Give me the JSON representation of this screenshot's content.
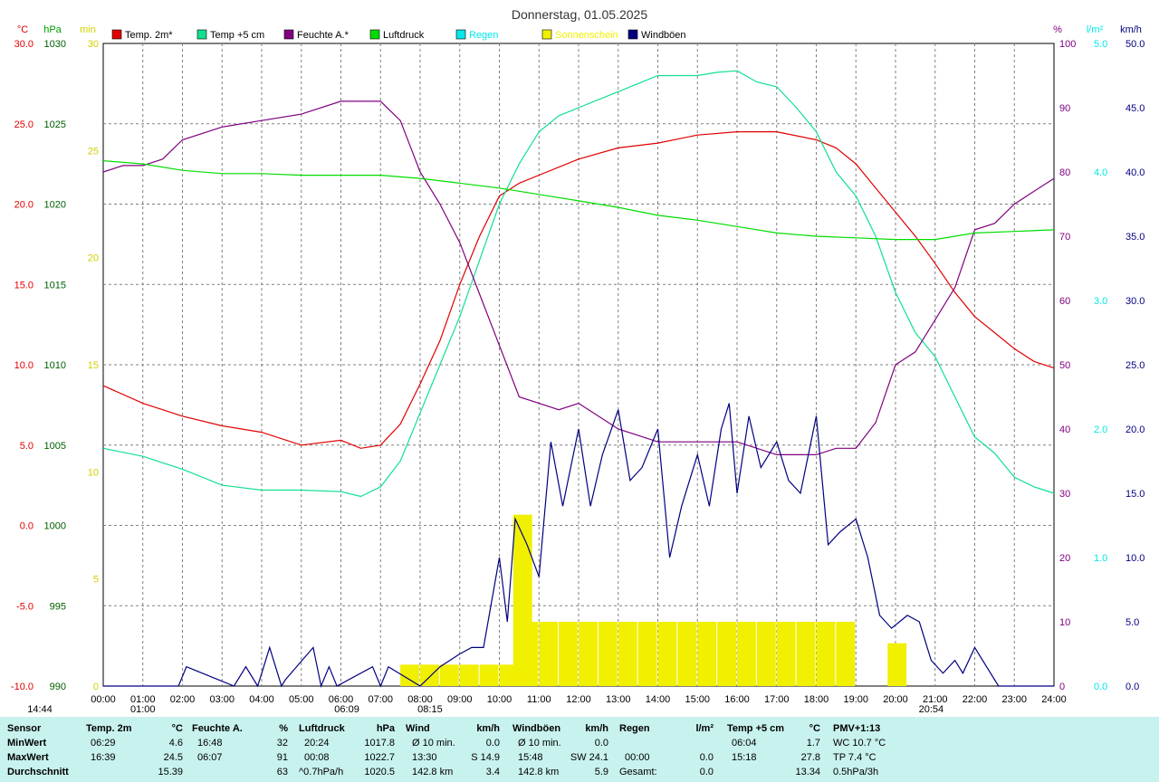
{
  "colors": {
    "temp2m": "#e00000",
    "temp5cm": "#10e090",
    "humidity": "#800080",
    "pressure": "#00dd00",
    "rain": "#00e8e8",
    "sunshine": "#f0f000",
    "gusts": "#000080",
    "grid": "#808080"
  },
  "chart_data": {
    "type": "line",
    "title": "Donnerstag, 01.05.2025",
    "legend": [
      {
        "name": "Temp. 2m*",
        "color": "#e00000"
      },
      {
        "name": "Temp +5 cm",
        "color": "#10e090"
      },
      {
        "name": "Feuchte A.*",
        "color": "#800080"
      },
      {
        "name": "Luftdruck",
        "color": "#00dd00"
      },
      {
        "name": "Regen",
        "color": "#00e8e8"
      },
      {
        "name": "Sonnenschein",
        "color": "#f0f000"
      },
      {
        "name": "Windböen",
        "color": "#000080"
      }
    ],
    "axes": {
      "left_units": [
        "°C",
        "hPa",
        "min"
      ],
      "right_units": [
        "%",
        "l/m²",
        "km/h"
      ],
      "temp": {
        "range": [
          -10,
          30
        ],
        "ticks": [
          "30.0",
          "25.0",
          "20.0",
          "15.0",
          "10.0",
          "5.0",
          "0.0",
          "-5.0",
          "-10.0"
        ]
      },
      "pressure": {
        "range": [
          990,
          1030
        ],
        "ticks": [
          "1030",
          "1025",
          "1020",
          "1015",
          "1010",
          "1005",
          "1000",
          "995",
          "990"
        ]
      },
      "sun_min": {
        "range": [
          0,
          30
        ],
        "ticks": [
          "30",
          "25",
          "20",
          "15",
          "10",
          "5",
          "0"
        ]
      },
      "humidity": {
        "range": [
          0,
          100
        ],
        "ticks": [
          "100",
          "90",
          "80",
          "70",
          "60",
          "50",
          "40",
          "30",
          "20",
          "10",
          "0"
        ]
      },
      "rain": {
        "range": [
          0,
          5
        ],
        "ticks": [
          "5.0",
          "4.0",
          "3.0",
          "2.0",
          "1.0",
          "0.0"
        ]
      },
      "wind": {
        "range": [
          0,
          50
        ],
        "ticks": [
          "50.0",
          "45.0",
          "40.0",
          "35.0",
          "30.0",
          "25.0",
          "20.0",
          "15.0",
          "10.0",
          "5.0",
          "0.0"
        ]
      },
      "x_ticks": [
        "00:00",
        "01:00",
        "02:00",
        "03:00",
        "04:00",
        "05:00",
        "06:00",
        "07:00",
        "08:00",
        "09:00",
        "10:00",
        "11:00",
        "12:00",
        "13:00",
        "14:00",
        "15:00",
        "16:00",
        "17:00",
        "18:00",
        "19:00",
        "20:00",
        "21:00",
        "22:00",
        "23:00",
        "24:00"
      ]
    },
    "markers": [
      {
        "label": "14:44",
        "hour": -1.6
      },
      {
        "label": "01:00",
        "hour": 1.0
      },
      {
        "label": "06:09",
        "hour": 6.15
      },
      {
        "label": "08:15",
        "hour": 8.25
      },
      {
        "label": "20:54",
        "hour": 20.9
      }
    ],
    "series": [
      {
        "name": "Temp. 2m*",
        "axis": "temp",
        "x": [
          0,
          1,
          2,
          3,
          4,
          5,
          6,
          6.5,
          7,
          7.5,
          8,
          8.5,
          9,
          9.5,
          10,
          10.5,
          11,
          11.5,
          12,
          13,
          14,
          15,
          16,
          17,
          18,
          18.5,
          19,
          19.5,
          20,
          20.5,
          21,
          21.5,
          22,
          22.5,
          23,
          23.5,
          24
        ],
        "y": [
          8.7,
          7.6,
          6.8,
          6.2,
          5.8,
          5.0,
          5.3,
          4.8,
          5.0,
          6.3,
          8.8,
          11.5,
          15.0,
          18.0,
          20.5,
          21.3,
          21.8,
          22.3,
          22.8,
          23.5,
          23.8,
          24.3,
          24.5,
          24.5,
          24.0,
          23.5,
          22.5,
          21.0,
          19.5,
          18.0,
          16.3,
          14.5,
          13.0,
          12.0,
          11.0,
          10.2,
          9.8
        ]
      },
      {
        "name": "Temp +5 cm",
        "axis": "temp",
        "x": [
          0,
          1,
          2,
          3,
          4,
          5,
          6,
          6.5,
          7,
          7.5,
          8,
          8.5,
          9,
          9.5,
          10,
          10.5,
          11,
          11.5,
          12,
          12.5,
          13,
          13.5,
          14,
          14.5,
          15,
          15.5,
          16,
          16.5,
          17,
          17.5,
          18,
          18.5,
          19,
          19.5,
          20,
          20.5,
          21,
          21.5,
          22,
          22.5,
          23,
          23.5,
          24
        ],
        "y": [
          4.8,
          4.3,
          3.5,
          2.5,
          2.2,
          2.2,
          2.1,
          1.8,
          2.4,
          4.0,
          7.0,
          10.0,
          13.0,
          16.5,
          20.0,
          22.5,
          24.5,
          25.5,
          26.0,
          26.5,
          27.0,
          27.5,
          28.0,
          28.0,
          28.0,
          28.2,
          28.3,
          27.6,
          27.3,
          26.0,
          24.5,
          22.0,
          20.5,
          18.0,
          14.5,
          12.0,
          10.5,
          8.0,
          5.5,
          4.5,
          3.0,
          2.4,
          2.0
        ]
      },
      {
        "name": "Feuchte A.*",
        "axis": "humidity",
        "x": [
          0,
          0.5,
          1,
          1.5,
          2,
          3,
          4,
          5,
          6,
          7,
          7.5,
          8,
          8.5,
          9,
          9.5,
          10,
          10.5,
          11,
          11.5,
          12,
          12.5,
          13,
          14,
          15,
          16,
          17,
          18,
          18.5,
          19,
          19.5,
          20,
          20.5,
          21,
          21.5,
          22,
          22.5,
          23,
          23.5,
          24
        ],
        "y": [
          80,
          81,
          81,
          82,
          85,
          87,
          88,
          89,
          91,
          91,
          88,
          80,
          75,
          69,
          61,
          53,
          45,
          44,
          43,
          44,
          42,
          40,
          38,
          38,
          38,
          36,
          36,
          37,
          37,
          41,
          50,
          52,
          57,
          62,
          71,
          72,
          75,
          77,
          79
        ]
      },
      {
        "name": "Luftdruck",
        "axis": "pressure",
        "x": [
          0,
          1,
          2,
          3,
          4,
          5,
          6,
          7,
          8,
          9,
          10,
          11,
          12,
          13,
          14,
          15,
          16,
          17,
          18,
          19,
          20,
          21,
          22,
          23,
          24
        ],
        "y": [
          1022.7,
          1022.5,
          1022.1,
          1021.9,
          1021.9,
          1021.8,
          1021.8,
          1021.8,
          1021.6,
          1021.3,
          1021.0,
          1020.6,
          1020.2,
          1019.8,
          1019.3,
          1019.0,
          1018.6,
          1018.2,
          1018.0,
          1017.9,
          1017.8,
          1017.8,
          1018.2,
          1018.3,
          1018.4
        ]
      },
      {
        "name": "Windböen",
        "axis": "wind",
        "x": [
          0,
          1.9,
          2.1,
          3.3,
          3.6,
          3.9,
          4.2,
          4.5,
          4.6,
          5.3,
          5.5,
          5.7,
          5.9,
          6.8,
          7.0,
          7.2,
          8.0,
          8.5,
          9.0,
          9.3,
          9.6,
          10.0,
          10.2,
          10.4,
          10.7,
          11.0,
          11.3,
          11.6,
          12.0,
          12.3,
          12.6,
          13.0,
          13.3,
          13.6,
          14.0,
          14.3,
          14.6,
          15.0,
          15.3,
          15.6,
          15.8,
          16.0,
          16.3,
          16.6,
          17.0,
          17.3,
          17.6,
          18.0,
          18.3,
          18.6,
          19.0,
          19.3,
          19.6,
          19.9,
          20.1,
          20.3,
          20.6,
          20.9,
          21.2,
          21.5,
          21.7,
          22.0,
          22.3,
          22.6,
          24.0
        ],
        "y": [
          0,
          0,
          1.5,
          0,
          1.5,
          0,
          3.0,
          0,
          0.5,
          3.0,
          0,
          1.5,
          0,
          1.5,
          0,
          1.5,
          0,
          1.5,
          2.5,
          3.0,
          3.0,
          10.0,
          5.0,
          13.0,
          11.0,
          8.5,
          19.0,
          14.0,
          20.0,
          14.0,
          18.0,
          21.5,
          16.0,
          17.0,
          20.0,
          10.0,
          14.0,
          18.0,
          14.0,
          20.0,
          22.0,
          15.0,
          21.0,
          17.0,
          19.0,
          16.0,
          15.0,
          21.0,
          11.0,
          12.0,
          13.0,
          10.0,
          5.5,
          4.5,
          5.0,
          5.5,
          5.0,
          2.0,
          1.0,
          2.0,
          1.0,
          3.0,
          1.5,
          0,
          0
        ]
      },
      {
        "name": "Sonnenschein",
        "axis": "sun_min",
        "type": "bar",
        "x": [
          7.5,
          8,
          8.5,
          9,
          9.5,
          10,
          10.35,
          10.5,
          11,
          11.5,
          12,
          12.5,
          13,
          13.5,
          14,
          14.5,
          15,
          15.5,
          16,
          16.5,
          17,
          17.5,
          18,
          18.5,
          19,
          19.8
        ],
        "y": [
          1,
          1,
          1,
          1,
          1,
          1,
          8,
          3,
          3,
          3,
          3,
          3,
          3,
          3,
          3,
          3,
          3,
          3,
          3,
          3,
          3,
          3,
          3,
          3,
          0,
          2
        ]
      }
    ]
  },
  "stats": {
    "headers": {
      "sensor": "Sensor",
      "temp": "Temp. 2m",
      "temp_unit": "°C",
      "hum": "Feuchte A.",
      "hum_unit": "%",
      "press": "Luftdruck",
      "press_unit": "hPa",
      "wind": "Wind",
      "wind_unit": "km/h",
      "gust": "Windböen",
      "gust_unit": "km/h",
      "rain": "Regen",
      "rain_unit": "l/m²",
      "temp5": "Temp +5 cm",
      "temp5_unit": "°C",
      "pmv": "PMV+1:13"
    },
    "rows": {
      "min": {
        "label": "MinWert",
        "t_time": "06:29",
        "t_val": "4.6",
        "h_time": "16:48",
        "h_val": "32",
        "p_time": "20:24",
        "p_val": "1017.8",
        "w_label": "Ø 10 min.",
        "w_val": "0.0",
        "g_label": "Ø 10 min.",
        "g_val": "0.0",
        "r_time": "",
        "r_val": "",
        "t5_time": "06:04",
        "t5_val": "1.7",
        "pmv": "WC 10.7 °C"
      },
      "max": {
        "label": "MaxWert",
        "t_time": "16:39",
        "t_val": "24.5",
        "h_time": "06:07",
        "h_val": "91",
        "p_time": "00:08",
        "p_val": "1022.7",
        "w_label": "13:30",
        "w_dir": "S 14.9",
        "g_label": "15:48",
        "g_dir": "SW 24.1",
        "r_time": "00:00",
        "r_val": "0.0",
        "t5_time": "15:18",
        "t5_val": "27.8",
        "pmv": "TP 7.4 °C"
      },
      "avg": {
        "label": "Durchschnitt",
        "t_val": "15.39",
        "h_val": "63",
        "p_trend": "^0.7hPa/h",
        "p_val": "1020.5",
        "w_label": "142.8 km",
        "w_val": "3.4",
        "g_label": "142.8 km",
        "g_val": "5.9",
        "r_label": "Gesamt:",
        "r_val": "0.0",
        "t5_val": "13.34",
        "pmv": "0.5hPa/3h"
      }
    }
  }
}
